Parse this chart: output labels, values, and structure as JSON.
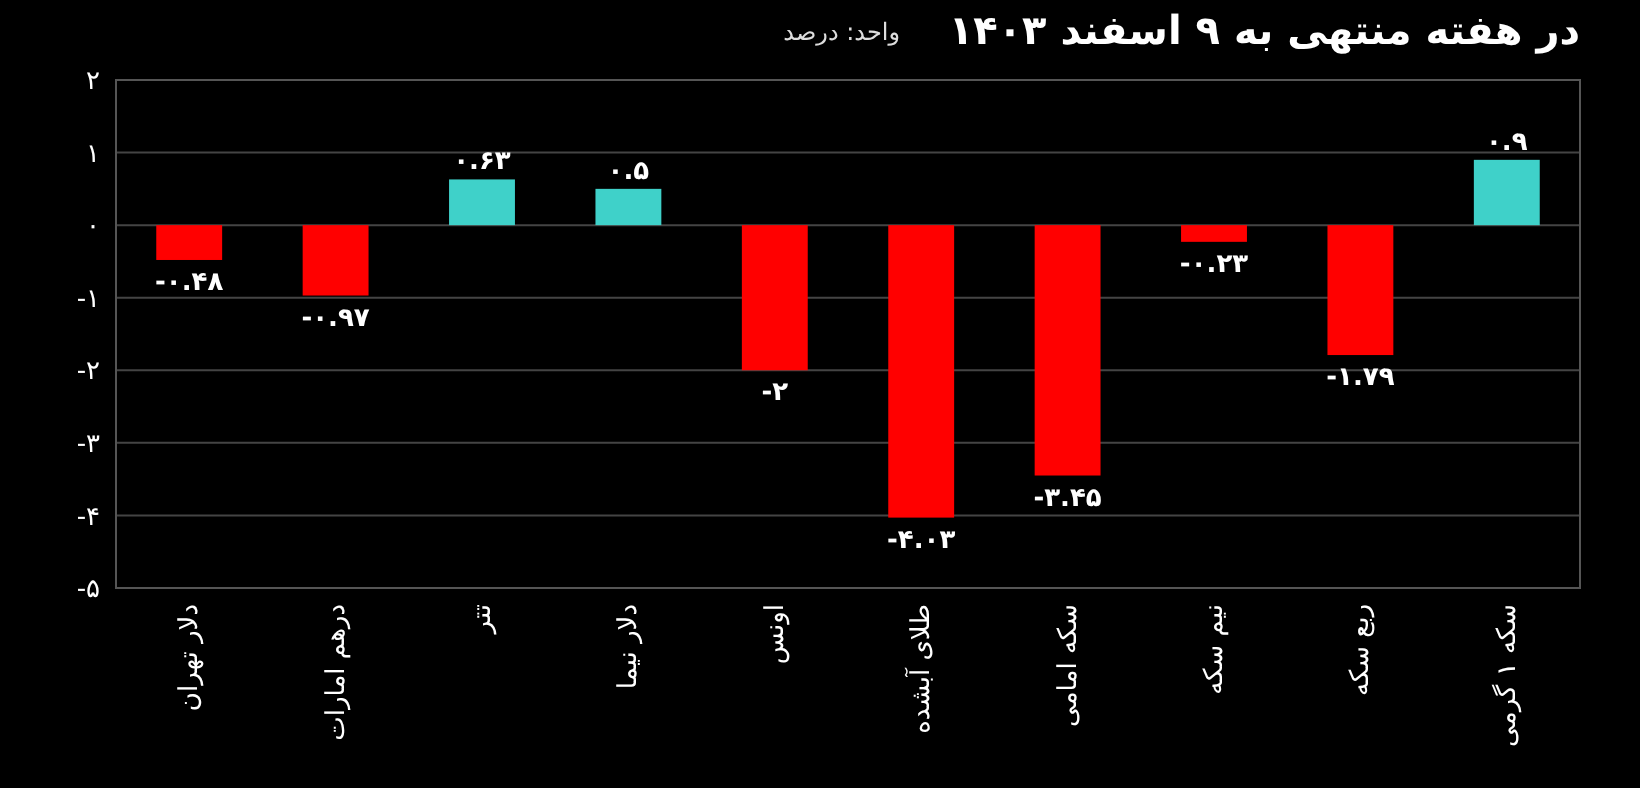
{
  "chart_data": {
    "type": "bar",
    "title": "در هفته منتهی به ۹ اسفند ۱۴۰۳",
    "subtitle": "واحد: درصد",
    "categories": [
      "دلار تهران",
      "درهم امارات",
      "تتر",
      "دلار نیما",
      "اونس",
      "طلای آبشده",
      "سکه امامی",
      "نیم سکه",
      "ربع سکه",
      "سکه ۱ گرمی"
    ],
    "values": [
      -0.48,
      -0.97,
      0.63,
      0.5,
      -2,
      -4.03,
      -3.45,
      -0.23,
      -1.79,
      0.9
    ],
    "colors": [
      "#ff0000",
      "#ff0000",
      "#3fd1c9",
      "#3fd1c9",
      "#ff0000",
      "#ff0000",
      "#ff0000",
      "#ff0000",
      "#ff0000",
      "#3fd1c9"
    ],
    "value_labels": [
      "-۰.۴۸",
      "-۰.۹۷",
      "۰.۶۳",
      "۰.۵",
      "-۲",
      "-۴.۰۳",
      "-۳.۴۵",
      "-۰.۲۳",
      "-۱.۷۹",
      "۰.۹"
    ],
    "ylim": [
      -5,
      2
    ],
    "yticks": [
      {
        "value": -5,
        "label": "-۵"
      },
      {
        "value": -4,
        "label": "-۴"
      },
      {
        "value": -3,
        "label": "-۳"
      },
      {
        "value": -2,
        "label": "-۲"
      },
      {
        "value": -1,
        "label": "-۱"
      },
      {
        "value": 0,
        "label": "۰"
      },
      {
        "value": 1,
        "label": "۱"
      },
      {
        "value": 2,
        "label": "۲"
      }
    ],
    "grid": "y"
  }
}
